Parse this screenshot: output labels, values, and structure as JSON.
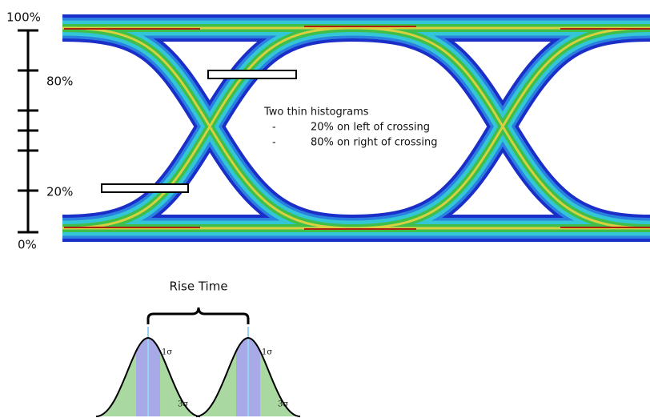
{
  "axis_labels": [
    "100%",
    "80%",
    "20%",
    "0%"
  ],
  "annotation": {
    "title": "Two thin histograms",
    "items": [
      {
        "bullet": "-",
        "text": "20% on left of crossing"
      },
      {
        "bullet": "-",
        "text": "80% on right of crossing"
      }
    ]
  },
  "rise_time": {
    "label": "Rise Time",
    "distributions": [
      {
        "labels": [
          "1σ",
          "3σ"
        ]
      },
      {
        "labels": [
          "1σ",
          "3σ"
        ]
      }
    ]
  }
}
